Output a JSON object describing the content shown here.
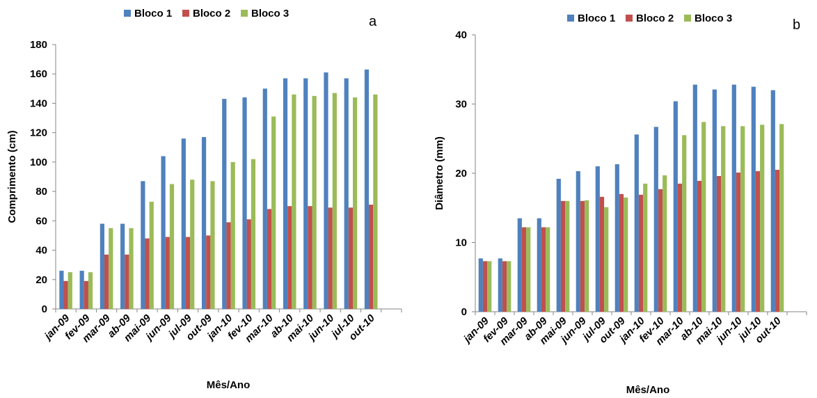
{
  "colors": {
    "bloco1": "#4f81bd",
    "bloco2": "#c0504d",
    "bloco3": "#9bbb59"
  },
  "chart_data": [
    {
      "type": "bar",
      "panel_label": "a",
      "xlabel": "Mês/Ano",
      "ylabel": "Comprimento  (cm)",
      "ylim": [
        0,
        180
      ],
      "yticks": [
        0,
        20,
        40,
        60,
        80,
        100,
        120,
        140,
        160,
        180
      ],
      "categories": [
        "jan-09",
        "fev-09",
        "mar-09",
        "ab-09",
        "mai-09",
        "jun-09",
        "jul-09",
        "out-09",
        "jan-10",
        "fev-10",
        "mar-10",
        "ab-10",
        "mai-10",
        "jun-10",
        "jul-10",
        "out-10"
      ],
      "legend_position": "top",
      "grid": false,
      "series": [
        {
          "name": "Bloco 1",
          "color": "#4f81bd",
          "values": [
            26,
            26,
            58,
            58,
            87,
            104,
            116,
            117,
            143,
            144,
            150,
            157,
            157,
            161,
            157,
            163
          ]
        },
        {
          "name": "Bloco 2",
          "color": "#c0504d",
          "values": [
            19,
            19,
            37,
            37,
            48,
            49,
            49,
            50,
            59,
            61,
            68,
            70,
            70,
            69,
            69,
            71
          ]
        },
        {
          "name": "Bloco 3",
          "color": "#9bbb59",
          "values": [
            25,
            25,
            55,
            55,
            73,
            85,
            88,
            87,
            100,
            102,
            131,
            146,
            145,
            147,
            144,
            146
          ]
        }
      ]
    },
    {
      "type": "bar",
      "panel_label": "b",
      "xlabel": "Mês/Ano",
      "ylabel": "Diâmetro  (mm)",
      "ylim": [
        0,
        40
      ],
      "yticks": [
        0,
        10,
        20,
        30,
        40
      ],
      "categories": [
        "jan-09",
        "fev-09",
        "mar-09",
        "ab-09",
        "mai-09",
        "jun-09",
        "jul-09",
        "out-09",
        "jan-10",
        "fev-10",
        "mar-10",
        "ab-10",
        "mai-10",
        "jun-10",
        "jul-10",
        "out-10"
      ],
      "legend_position": "top",
      "grid": false,
      "series": [
        {
          "name": "Bloco 1",
          "color": "#4f81bd",
          "values": [
            7.7,
            7.7,
            13.5,
            13.5,
            19.2,
            20.3,
            21.0,
            21.3,
            25.6,
            26.7,
            30.4,
            32.8,
            32.1,
            32.8,
            32.5,
            32.0
          ]
        },
        {
          "name": "Bloco 2",
          "color": "#c0504d",
          "values": [
            7.3,
            7.3,
            12.2,
            12.2,
            16.0,
            16.0,
            16.6,
            17.0,
            16.9,
            17.7,
            18.5,
            18.9,
            19.6,
            20.1,
            20.3,
            20.5
          ]
        },
        {
          "name": "Bloco 3",
          "color": "#9bbb59",
          "values": [
            7.3,
            7.3,
            12.2,
            12.2,
            16.0,
            16.1,
            15.1,
            16.5,
            18.5,
            19.7,
            25.5,
            27.4,
            26.8,
            26.8,
            27.0,
            27.1
          ]
        }
      ]
    }
  ]
}
